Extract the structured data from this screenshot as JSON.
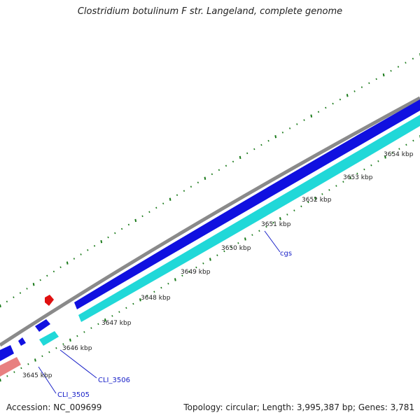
{
  "title": "Clostridium botulinum F str. Langeland, complete genome",
  "footer": {
    "accession": "Accession: NC_009699",
    "stats": "Topology: circular; Length: 3,995,387 bp; Genes: 3,781"
  },
  "kbp_labels": [
    "3645 kbp",
    "3646 kbp",
    "3647 kbp",
    "3648 kbp",
    "3649 kbp",
    "3650 kbp",
    "3651 kbp",
    "3652 kbp",
    "3653 kbp",
    "3654 kbp"
  ],
  "gene_labels": [
    "CLI_3505",
    "CLI_3506",
    "cgs"
  ],
  "colors": {
    "backbone": "#8a8a8a",
    "forward_gene": "#1010e0",
    "reverse_gene": "#20d8d8",
    "red_feature": "#e01010",
    "pink_feature": "#e88080",
    "tick": "#1a7a1a",
    "label": "#1a22c8"
  }
}
